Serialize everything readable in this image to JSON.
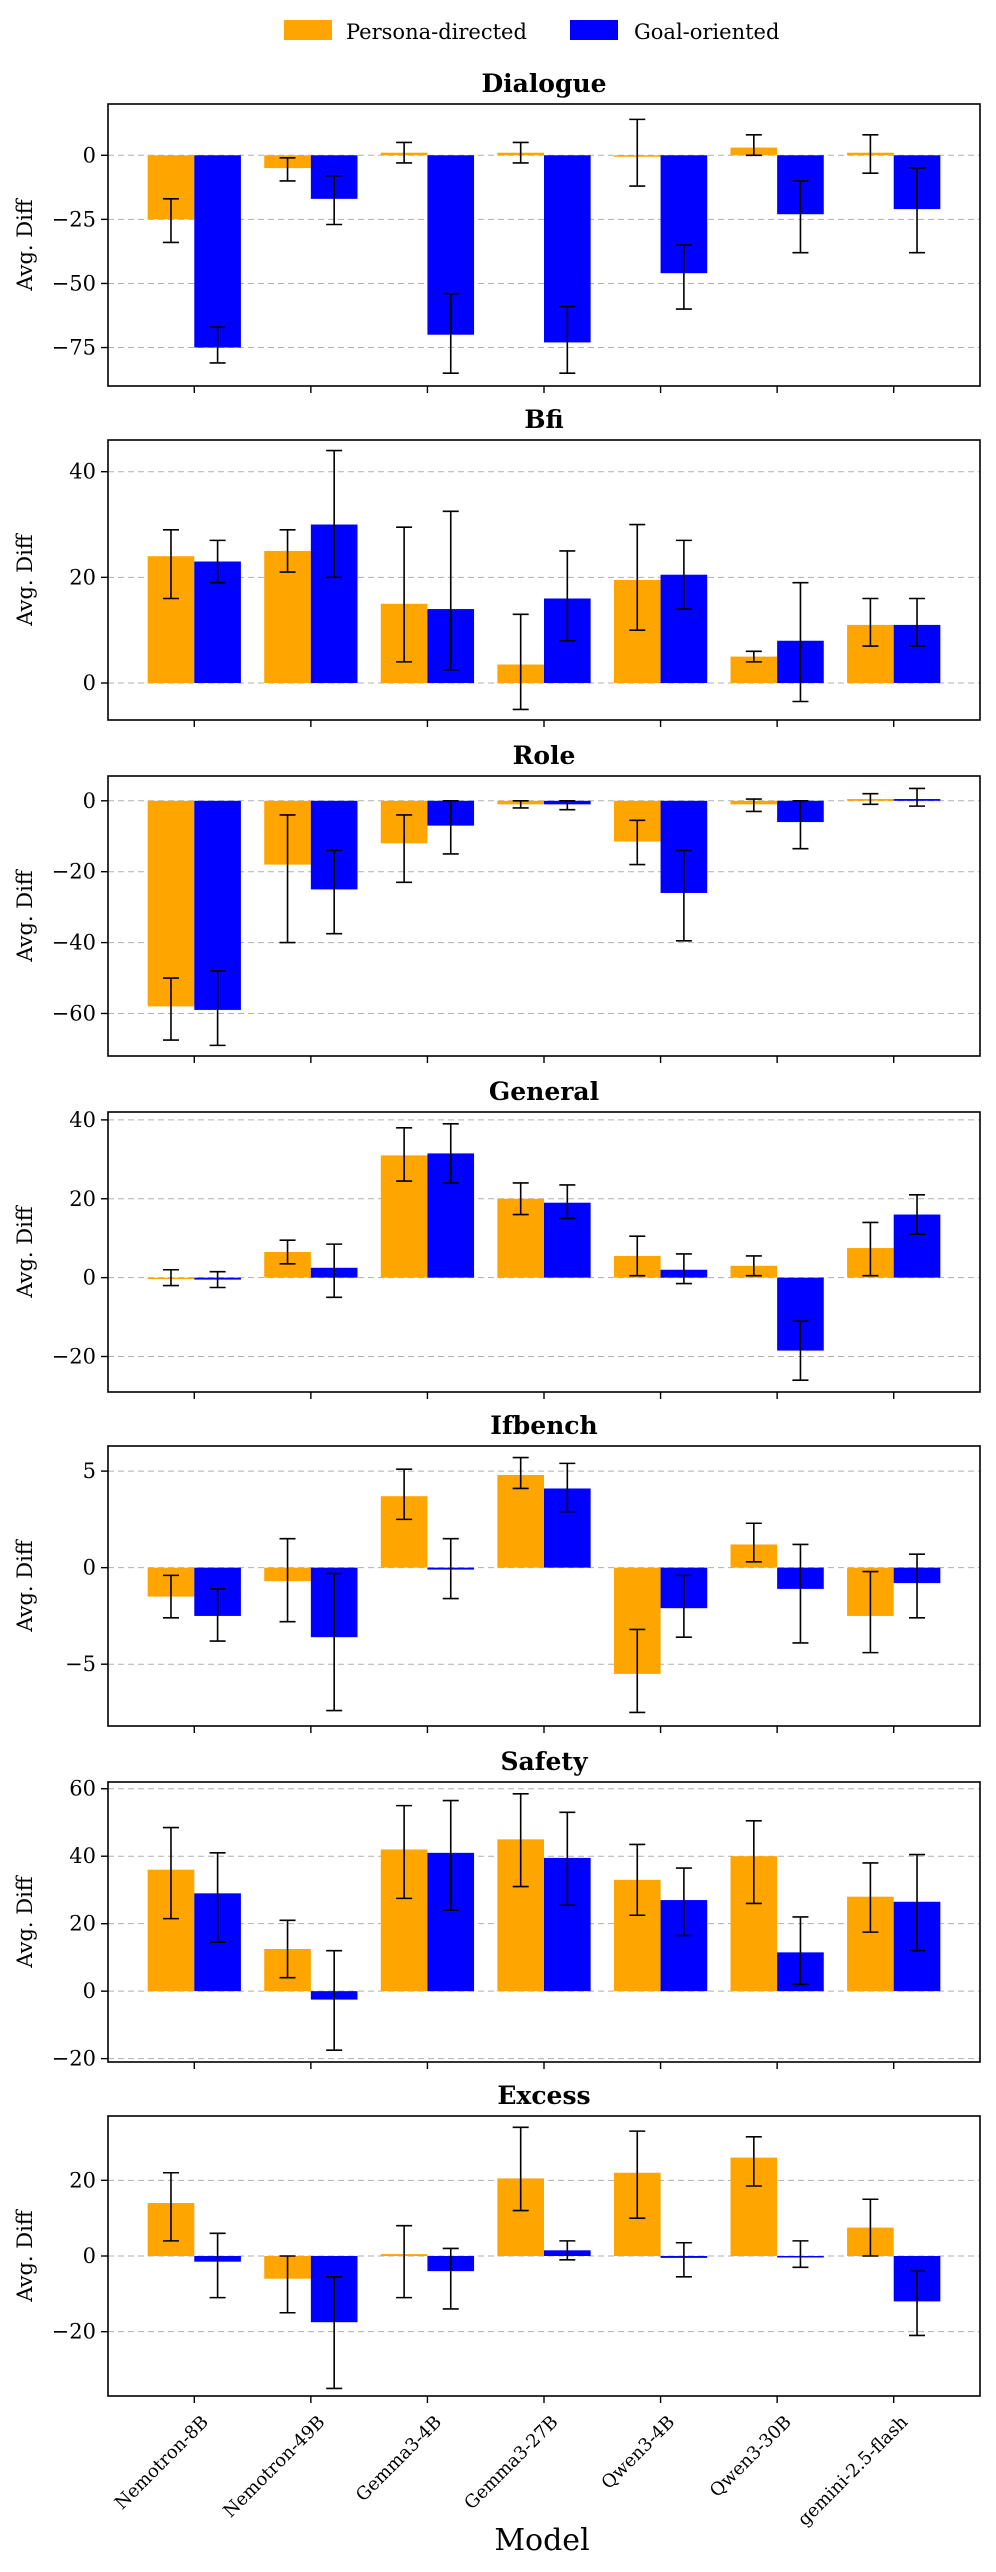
{
  "chart_data": {
    "type": "bar",
    "legend": {
      "position": "top-center",
      "entries": [
        {
          "name": "Persona-directed",
          "color": "#FFA500"
        },
        {
          "name": "Goal-oriented",
          "color": "#0000FF"
        }
      ]
    },
    "categories": [
      "Nemotron-8B",
      "Nemotron-49B",
      "Gemma3-4B",
      "Gemma3-27B",
      "Qwen3-4B",
      "Qwen3-30B",
      "gemini-2.5-flash"
    ],
    "xlabel": "Model",
    "ylabel": "Avg. Diff",
    "grid": "horizontal dashed",
    "panels": [
      {
        "title": "Dialogue",
        "ylim": [
          -90,
          20
        ],
        "yticks": [
          0,
          -25,
          -50,
          -75
        ],
        "series": [
          {
            "name": "Persona-directed",
            "values": [
              -25,
              -5,
              1,
              1,
              0,
              3,
              1
            ],
            "err_low": [
              -34,
              -10,
              -3,
              -3,
              -12,
              0,
              -7
            ],
            "err_high": [
              -17,
              -1,
              5,
              5,
              14,
              8,
              8
            ]
          },
          {
            "name": "Goal-oriented",
            "values": [
              -75,
              -17,
              -70,
              -73,
              -46,
              -23,
              -21
            ],
            "err_low": [
              -81,
              -27,
              -85,
              -85,
              -60,
              -38,
              -38
            ],
            "err_high": [
              -67,
              -8,
              -54,
              -59,
              -35,
              -10,
              -5
            ]
          }
        ]
      },
      {
        "title": "Bfi",
        "ylim": [
          -7,
          46
        ],
        "yticks": [
          0,
          20,
          40
        ],
        "series": [
          {
            "name": "Persona-directed",
            "values": [
              24,
              25,
              15,
              3.5,
              19.5,
              5,
              11
            ],
            "err_low": [
              16,
              21,
              4,
              -5,
              10,
              4,
              7
            ],
            "err_high": [
              29,
              29,
              29.5,
              13,
              30,
              6,
              16
            ]
          },
          {
            "name": "Goal-oriented",
            "values": [
              23,
              30,
              14,
              16,
              20.5,
              8,
              11
            ],
            "err_low": [
              19,
              20,
              2.5,
              8,
              14,
              -3.5,
              7
            ],
            "err_high": [
              27,
              44,
              32.5,
              25,
              27,
              19,
              16
            ]
          }
        ]
      },
      {
        "title": "Role",
        "ylim": [
          -72,
          7
        ],
        "yticks": [
          0,
          -20,
          -40,
          -60
        ],
        "series": [
          {
            "name": "Persona-directed",
            "values": [
              -58,
              -18,
              -12,
              -1,
              -11.5,
              -1,
              0.5
            ],
            "err_low": [
              -67.5,
              -40,
              -23,
              -2,
              -18,
              -3,
              -1
            ],
            "err_high": [
              -50,
              -4,
              -4,
              0,
              -5.5,
              0.5,
              2
            ]
          },
          {
            "name": "Goal-oriented",
            "values": [
              -59,
              -25,
              -7,
              -1,
              -26,
              -6,
              0.5
            ],
            "err_low": [
              -69,
              -37.5,
              -15,
              -2.5,
              -39.5,
              -13.5,
              -1.5
            ],
            "err_high": [
              -48,
              -14,
              0,
              0,
              -14,
              0,
              3.5
            ]
          }
        ]
      },
      {
        "title": "General",
        "ylim": [
          -29,
          42
        ],
        "yticks": [
          40,
          20,
          0,
          -20
        ],
        "series": [
          {
            "name": "Persona-directed",
            "values": [
              0,
              6.5,
              31,
              20,
              5.5,
              3,
              7.5
            ],
            "err_low": [
              -2,
              3.5,
              24.5,
              16,
              0.5,
              0.5,
              0.5
            ],
            "err_high": [
              2,
              9.5,
              38,
              24,
              10.5,
              5.5,
              14
            ]
          },
          {
            "name": "Goal-oriented",
            "values": [
              -0.5,
              2.5,
              31.5,
              19,
              2,
              -18.5,
              16
            ],
            "err_low": [
              -2.5,
              -5,
              24,
              15,
              -1.5,
              -26,
              11
            ],
            "err_high": [
              1.5,
              8.5,
              39,
              23.5,
              6,
              -11,
              21
            ]
          }
        ]
      },
      {
        "title": "Ifbench",
        "ylim": [
          -8.2,
          6.3
        ],
        "yticks": [
          5,
          0,
          -5
        ],
        "series": [
          {
            "name": "Persona-directed",
            "values": [
              -1.5,
              -0.7,
              3.7,
              4.8,
              -5.5,
              1.2,
              -2.5
            ],
            "err_low": [
              -2.6,
              -2.8,
              2.5,
              4.1,
              -7.5,
              0.3,
              -4.4
            ],
            "err_high": [
              -0.4,
              1.5,
              5.1,
              5.7,
              -3.2,
              2.3,
              -0.2
            ]
          },
          {
            "name": "Goal-oriented",
            "values": [
              -2.5,
              -3.6,
              -0.1,
              4.1,
              -2.1,
              -1.1,
              -0.8
            ],
            "err_low": [
              -3.8,
              -7.4,
              -1.6,
              2.9,
              -3.6,
              -3.9,
              -2.6
            ],
            "err_high": [
              -1.1,
              -0.3,
              1.5,
              5.4,
              -0.4,
              1.2,
              0.7
            ]
          }
        ]
      },
      {
        "title": "Safety",
        "ylim": [
          -21,
          62
        ],
        "yticks": [
          60,
          40,
          20,
          0,
          -20
        ],
        "series": [
          {
            "name": "Persona-directed",
            "values": [
              36,
              12.5,
              42,
              45,
              33,
              40,
              28
            ],
            "err_low": [
              21.5,
              4,
              27.5,
              31,
              22.5,
              26,
              17.5
            ],
            "err_high": [
              48.5,
              21,
              55,
              58.5,
              43.5,
              50.5,
              38
            ]
          },
          {
            "name": "Goal-oriented",
            "values": [
              29,
              -2.5,
              41,
              39.5,
              27,
              11.5,
              26.5
            ],
            "err_low": [
              14.5,
              -17.5,
              24,
              25.5,
              16.5,
              2,
              12
            ],
            "err_high": [
              41,
              12,
              56.5,
              53,
              36.5,
              22,
              40.5
            ]
          }
        ]
      },
      {
        "title": "Excess",
        "ylim": [
          -37,
          37
        ],
        "yticks": [
          20,
          0,
          -20
        ],
        "series": [
          {
            "name": "Persona-directed",
            "values": [
              14,
              -6,
              0.5,
              20.5,
              22,
              26,
              7.5
            ],
            "err_low": [
              4,
              -15,
              -11,
              12,
              10,
              18.5,
              0
            ],
            "err_high": [
              22,
              0,
              8,
              34,
              33,
              31.5,
              15
            ]
          },
          {
            "name": "Goal-oriented",
            "values": [
              -1.5,
              -17.5,
              -4,
              1.5,
              -0.5,
              0,
              -12
            ],
            "err_low": [
              -11,
              -35,
              -14,
              -1,
              -5.5,
              -3,
              -21
            ],
            "err_high": [
              6,
              -5.5,
              2,
              4,
              3.5,
              4,
              -4
            ]
          }
        ]
      }
    ]
  }
}
